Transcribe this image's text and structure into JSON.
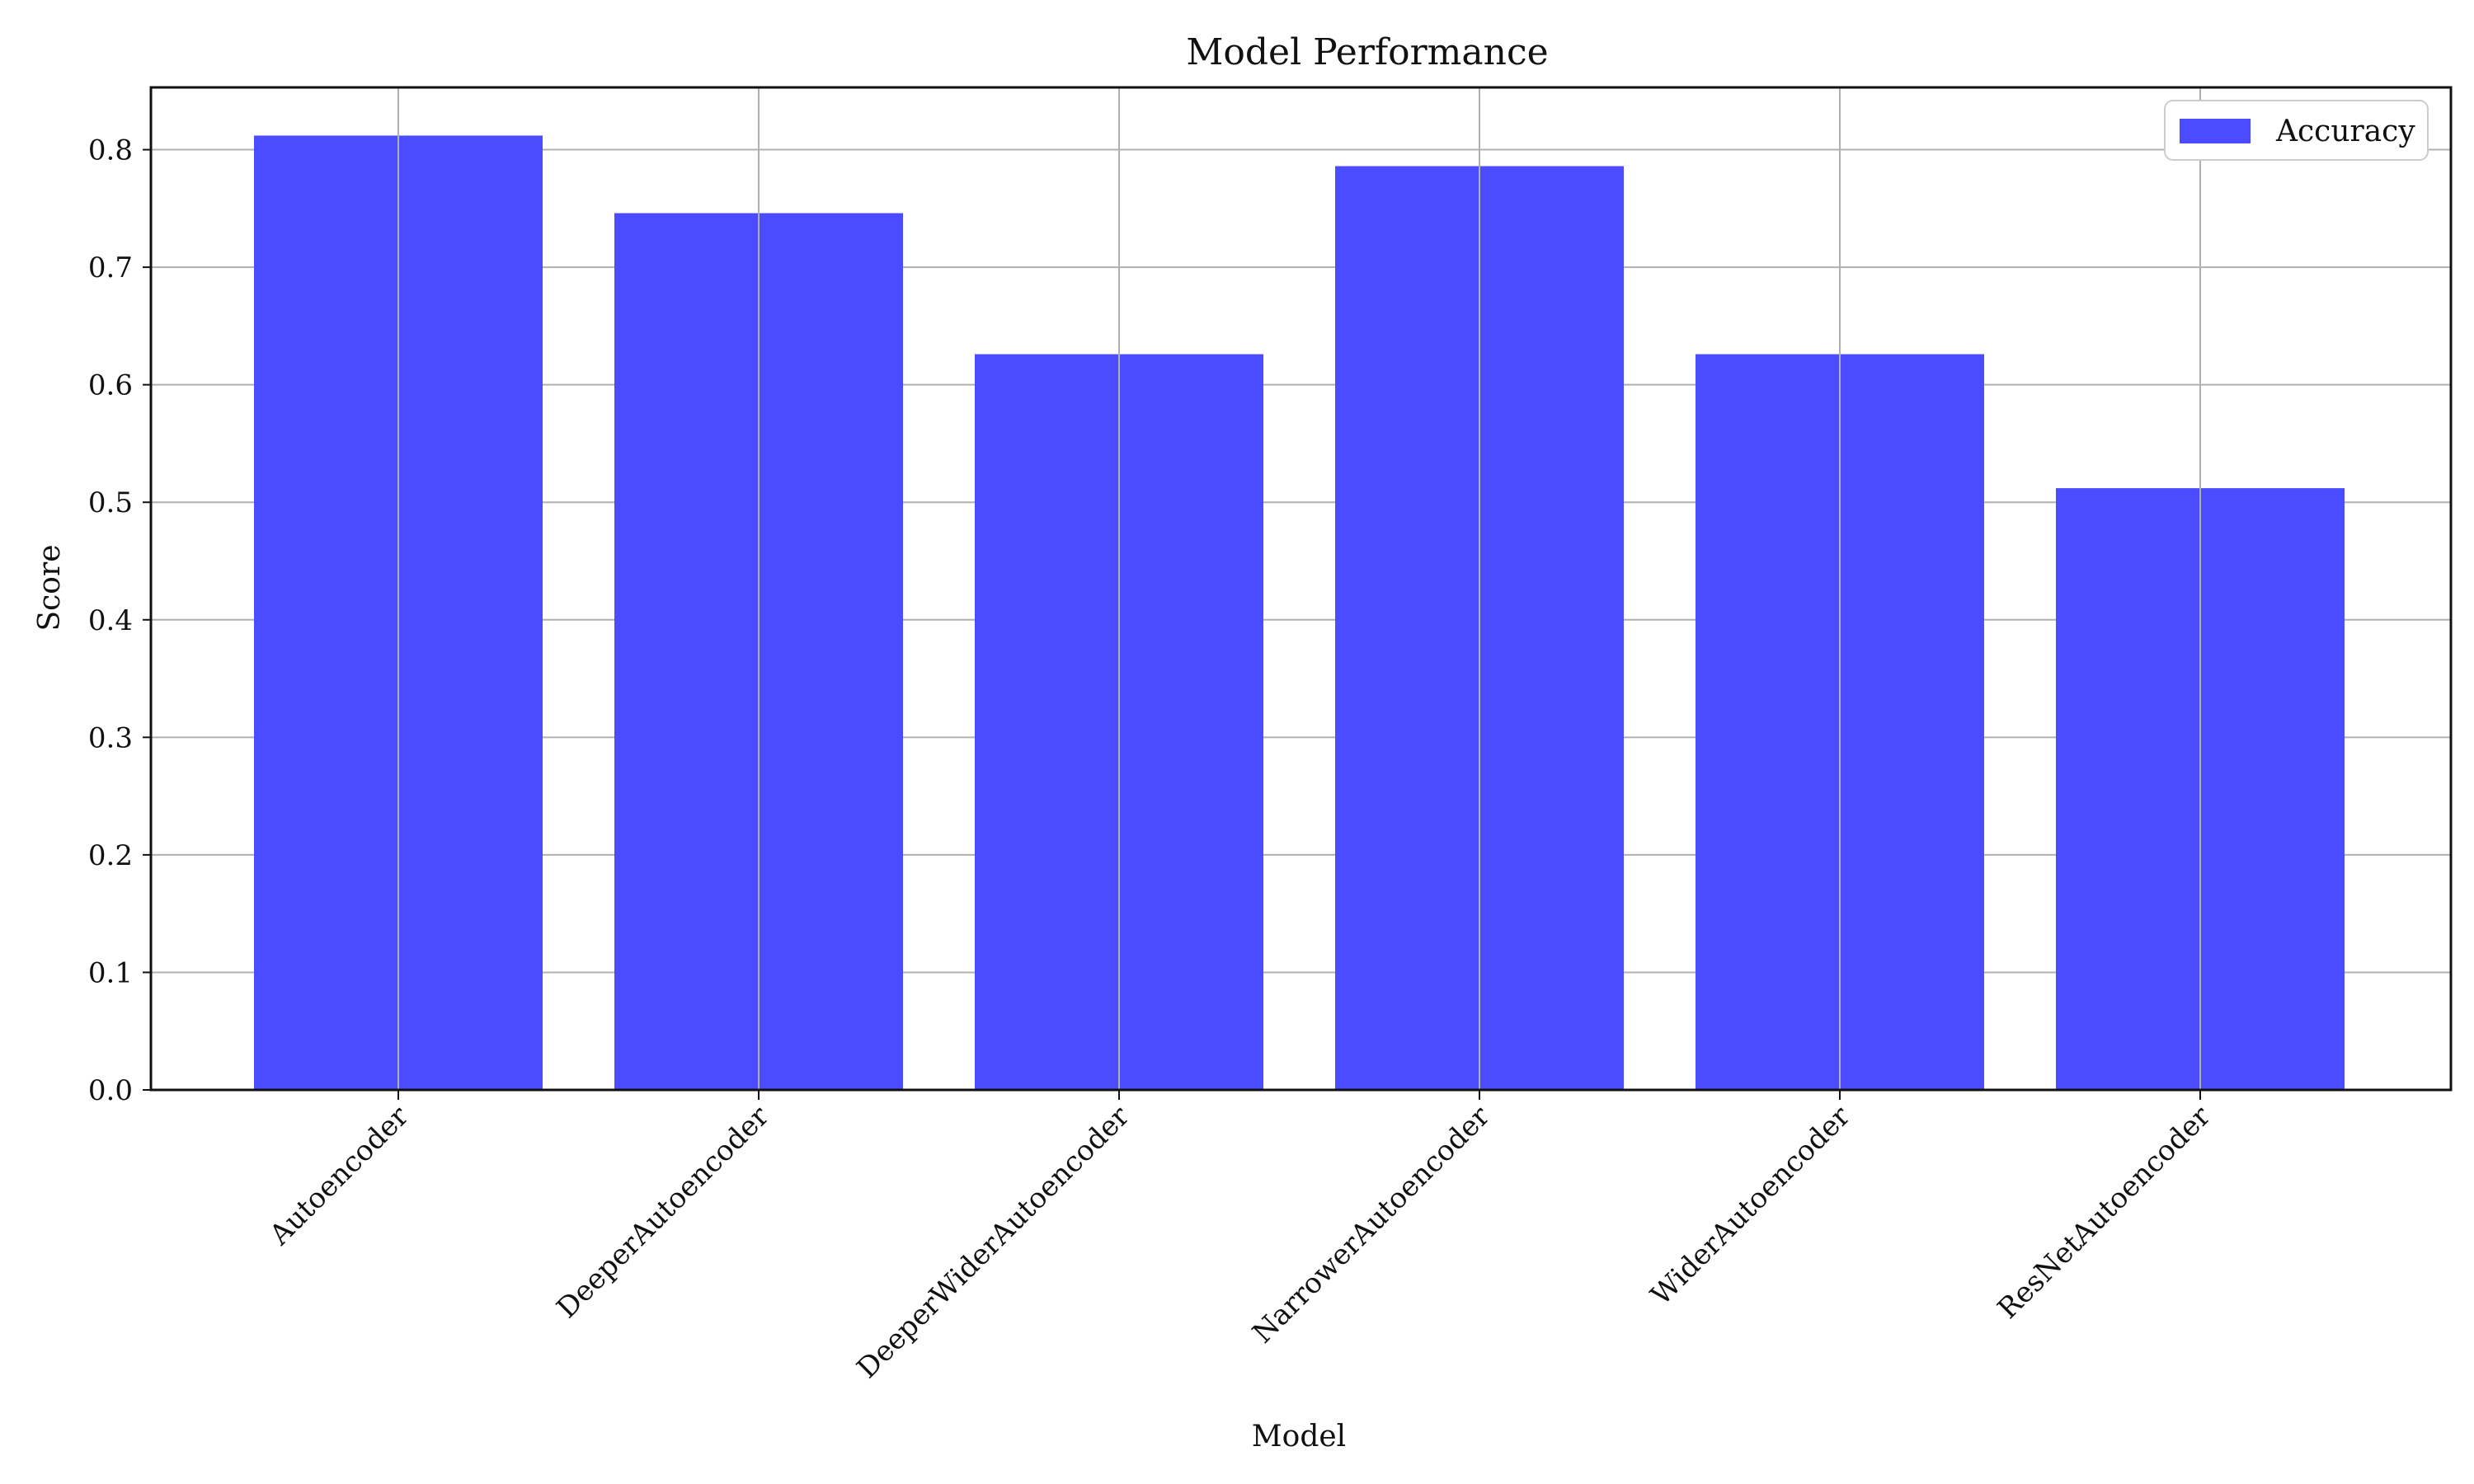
{
  "chart_data": {
    "type": "bar",
    "title": "Model Performance",
    "xlabel": "Model",
    "ylabel": "Score",
    "categories": [
      "Autoencoder",
      "DeeperAutoencoder",
      "DeeperWiderAutoencoder",
      "NarrowerAutoencoder",
      "WiderAutoencoder",
      "ResNetAutoencoder"
    ],
    "series": [
      {
        "name": "Accuracy",
        "values": [
          0.812,
          0.746,
          0.626,
          0.786,
          0.626,
          0.512
        ],
        "color": "#4b4bff"
      }
    ],
    "ylim": [
      0.0,
      0.853
    ],
    "yticks": [
      0.0,
      0.1,
      0.2,
      0.3,
      0.4,
      0.5,
      0.6,
      0.7,
      0.8
    ],
    "ytick_labels": [
      "0.0",
      "0.1",
      "0.2",
      "0.3",
      "0.4",
      "0.5",
      "0.6",
      "0.7",
      "0.8"
    ],
    "grid": true,
    "legend": {
      "position": "top-right"
    },
    "x_tick_rotation_deg": 45
  }
}
